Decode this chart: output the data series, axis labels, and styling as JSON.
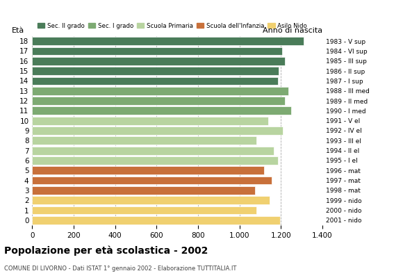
{
  "ages": [
    18,
    17,
    16,
    15,
    14,
    13,
    12,
    11,
    10,
    9,
    8,
    7,
    6,
    5,
    4,
    3,
    2,
    1,
    0
  ],
  "values": [
    1310,
    1205,
    1220,
    1190,
    1185,
    1235,
    1220,
    1250,
    1140,
    1210,
    1080,
    1165,
    1185,
    1120,
    1155,
    1075,
    1145,
    1080,
    1195
  ],
  "anno_nascita": [
    "1983 - V sup",
    "1984 - VI sup",
    "1985 - III sup",
    "1986 - II sup",
    "1987 - I sup",
    "1988 - III med",
    "1989 - II med",
    "1990 - I med",
    "1991 - V el",
    "1992 - IV el",
    "1993 - III el",
    "1994 - II el",
    "1995 - I el",
    "1996 - mat",
    "1997 - mat",
    "1998 - mat",
    "1999 - nido",
    "2000 - nido",
    "2001 - nido"
  ],
  "colors": [
    "#4a7c59",
    "#4a7c59",
    "#4a7c59",
    "#4a7c59",
    "#4a7c59",
    "#7daa72",
    "#7daa72",
    "#7daa72",
    "#b8d4a0",
    "#b8d4a0",
    "#b8d4a0",
    "#b8d4a0",
    "#b8d4a0",
    "#c8703a",
    "#c8703a",
    "#c8703a",
    "#f0d070",
    "#f0d070",
    "#f0d070"
  ],
  "legend_labels": [
    "Sec. II grado",
    "Sec. I grado",
    "Scuola Primaria",
    "Scuola dell'Infanzia",
    "Asilo Nido"
  ],
  "legend_colors": [
    "#4a7c59",
    "#7daa72",
    "#b8d4a0",
    "#c8703a",
    "#f0d070"
  ],
  "title": "Popolazione per età scolastica - 2002",
  "subtitle": "COMUNE DI LIVORNO - Dati ISTAT 1° gennaio 2002 - Elaborazione TUTTITALIA.IT",
  "ylabel": "Età",
  "anno_label": "Anno di nascita",
  "xlim": [
    0,
    1400
  ],
  "xticks": [
    0,
    200,
    400,
    600,
    800,
    1000,
    1200,
    1400
  ],
  "bg_color": "#ffffff"
}
